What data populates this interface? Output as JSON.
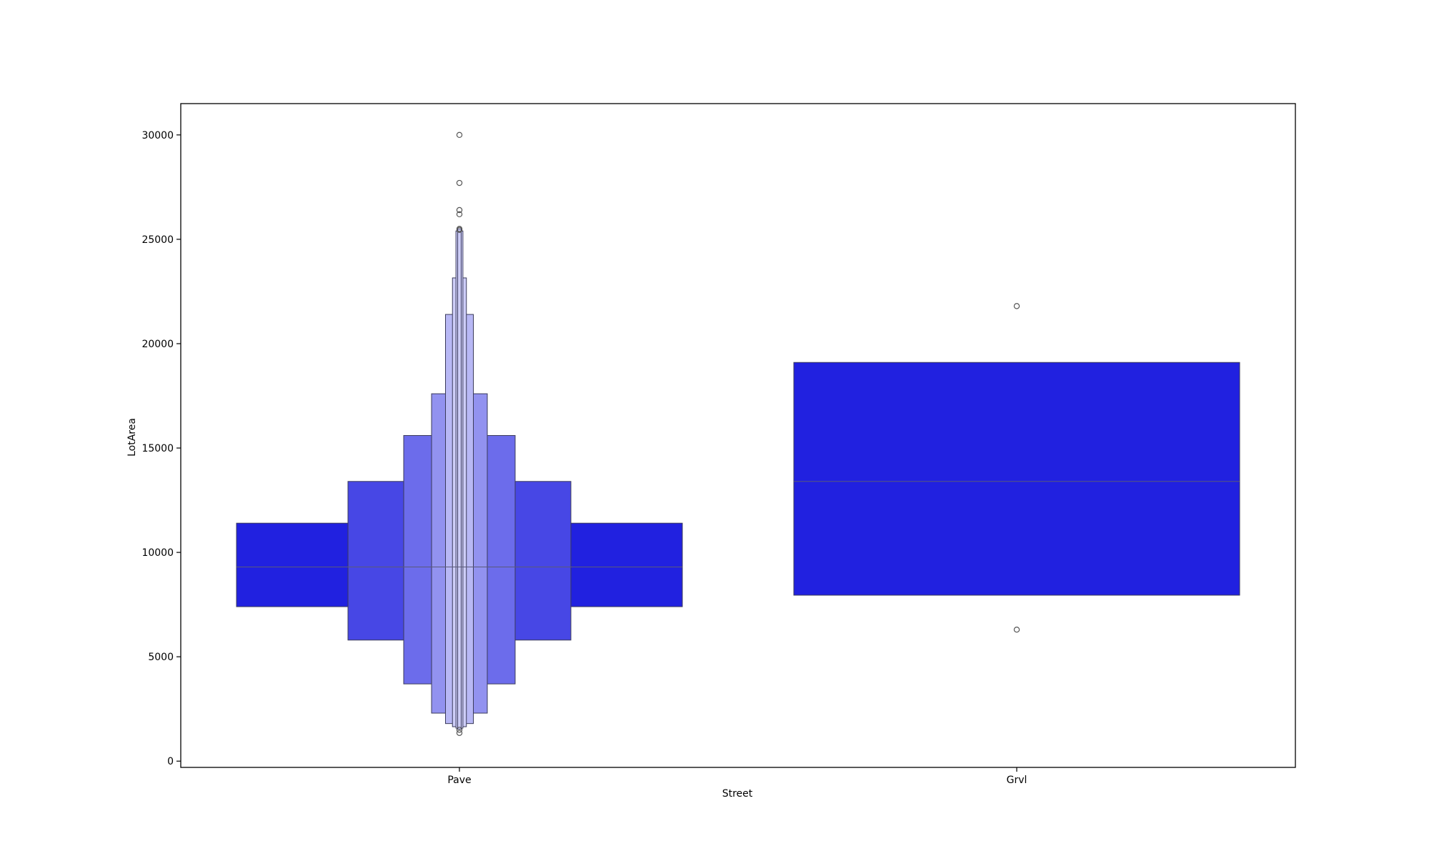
{
  "chart_data": {
    "type": "boxen",
    "title": "",
    "xlabel": "Street",
    "ylabel": "LotArea",
    "categories": [
      "Pave",
      "Grvl"
    ],
    "ylim": [
      -300,
      31500
    ],
    "yticks": [
      0,
      5000,
      10000,
      15000,
      20000,
      25000,
      30000
    ],
    "grid": false,
    "color": "#2121e0",
    "edge_color": "#3a3a5a",
    "outlier_edge_color": "#555555",
    "groups": [
      {
        "category": "Pave",
        "median": 9300,
        "levels": [
          [
            7400,
            11400
          ],
          [
            5800,
            13400
          ],
          [
            3700,
            15600
          ],
          [
            2300,
            17600
          ],
          [
            1800,
            21400
          ],
          [
            1650,
            23150
          ],
          [
            1580,
            25400
          ],
          [
            1530,
            25500
          ]
        ],
        "outliers": [
          30000,
          27700,
          26400,
          26200,
          25500,
          25450,
          1500,
          1350
        ]
      },
      {
        "category": "Grvl",
        "median": 13400,
        "levels": [
          [
            7950,
            19100
          ]
        ],
        "outliers": [
          21800,
          6300
        ]
      }
    ]
  }
}
